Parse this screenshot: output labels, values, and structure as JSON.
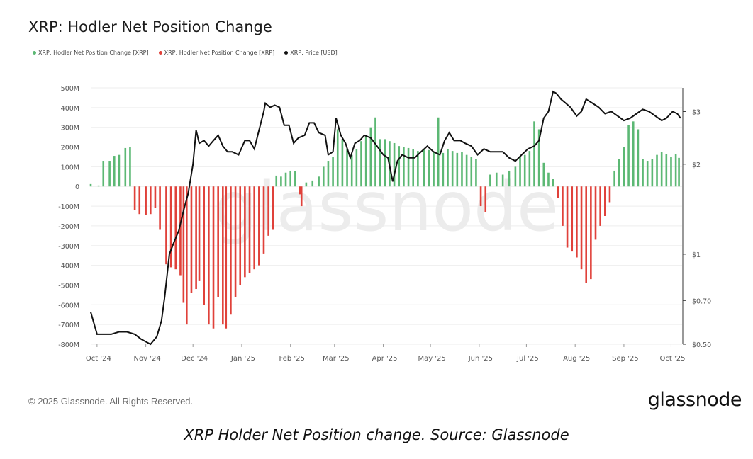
{
  "title": "XRP: Hodler Net Position Change",
  "legend": [
    {
      "label": "XRP: Hodler Net Position Change [XRP]",
      "color": "#5cb874"
    },
    {
      "label": "XRP: Hodler Net Position Change [XRP]",
      "color": "#e0413a"
    },
    {
      "label": "XRP: Price [USD]",
      "color": "#111111"
    }
  ],
  "watermark": "glassnode",
  "footer": {
    "copyright": "© 2025 Glassnode. All Rights Reserved.",
    "logo": "glassnode"
  },
  "caption": "XRP Holder Net Position change. Source: Glassnode",
  "chart_data": {
    "type": "bar",
    "title": "XRP: Hodler Net Position Change",
    "x_range": [
      "2024-09-27",
      "2025-10-08"
    ],
    "x_ticks": [
      "Oct '24",
      "Nov '24",
      "Dec '24",
      "Jan '25",
      "Feb '25",
      "Mar '25",
      "Apr '25",
      "May '25",
      "Jun '25",
      "Jul '25",
      "Aug '25",
      "Sep '25",
      "Oct '25"
    ],
    "y_left": {
      "ylim": [
        -800000000,
        500000000
      ],
      "ticks": [
        "500M",
        "400M",
        "300M",
        "200M",
        "100M",
        "0",
        "-100M",
        "-200M",
        "-300M",
        "-400M",
        "-500M",
        "-600M",
        "-700M",
        "-800M"
      ],
      "tick_values": [
        500,
        400,
        300,
        200,
        100,
        0,
        -100,
        -200,
        -300,
        -400,
        -500,
        -600,
        -700,
        -800
      ]
    },
    "y_right": {
      "scale": "log",
      "ticks": [
        "$3",
        "$2",
        "$1",
        "$0.70",
        "$0.50"
      ],
      "tick_values": [
        3,
        2,
        1,
        0.7,
        0.5
      ],
      "ylim": [
        0.5,
        3.6
      ]
    },
    "colors": {
      "positive": "#5cb874",
      "negative": "#e0413a",
      "price": "#111111"
    },
    "bar_unit": "M XRP",
    "series": [
      {
        "name": "XRP: Hodler Net Position Change [XRP]",
        "kind": "bars",
        "points": [
          [
            "2024-09-27",
            12
          ],
          [
            "2024-10-02",
            5
          ],
          [
            "2024-10-05",
            130
          ],
          [
            "2024-10-09",
            130
          ],
          [
            "2024-10-12",
            155
          ],
          [
            "2024-10-15",
            160
          ],
          [
            "2024-10-19",
            195
          ],
          [
            "2024-10-22",
            200
          ],
          [
            "2024-10-25",
            -120
          ],
          [
            "2024-10-28",
            -140
          ],
          [
            "2024-11-01",
            -145
          ],
          [
            "2024-11-04",
            -140
          ],
          [
            "2024-11-07",
            -110
          ],
          [
            "2024-11-10",
            -220
          ],
          [
            "2024-11-14",
            -395
          ],
          [
            "2024-11-17",
            -410
          ],
          [
            "2024-11-20",
            -420
          ],
          [
            "2024-11-23",
            -450
          ],
          [
            "2024-11-25",
            -590
          ],
          [
            "2024-11-27",
            -700
          ],
          [
            "2024-11-30",
            -540
          ],
          [
            "2024-12-03",
            -520
          ],
          [
            "2024-12-05",
            -480
          ],
          [
            "2024-12-08",
            -600
          ],
          [
            "2024-12-11",
            -700
          ],
          [
            "2024-12-14",
            -720
          ],
          [
            "2024-12-17",
            -560
          ],
          [
            "2024-12-20",
            -700
          ],
          [
            "2024-12-22",
            -720
          ],
          [
            "2024-12-25",
            -650
          ],
          [
            "2024-12-28",
            -560
          ],
          [
            "2024-12-31",
            -500
          ],
          [
            "2025-01-03",
            -460
          ],
          [
            "2025-01-06",
            -440
          ],
          [
            "2025-01-09",
            -420
          ],
          [
            "2025-01-12",
            -400
          ],
          [
            "2025-01-15",
            -340
          ],
          [
            "2025-01-18",
            -250
          ],
          [
            "2025-01-21",
            -220
          ],
          [
            "2025-01-23",
            55
          ],
          [
            "2025-01-26",
            50
          ],
          [
            "2025-01-29",
            70
          ],
          [
            "2025-02-01",
            80
          ],
          [
            "2025-02-04",
            78
          ],
          [
            "2025-02-07",
            -40
          ],
          [
            "2025-02-08",
            -100
          ],
          [
            "2025-02-11",
            20
          ],
          [
            "2025-02-15",
            30
          ],
          [
            "2025-02-19",
            50
          ],
          [
            "2025-02-22",
            100
          ],
          [
            "2025-02-25",
            130
          ],
          [
            "2025-02-28",
            150
          ],
          [
            "2025-03-03",
            290
          ],
          [
            "2025-03-06",
            240
          ],
          [
            "2025-03-09",
            190
          ],
          [
            "2025-03-12",
            160
          ],
          [
            "2025-03-15",
            190
          ],
          [
            "2025-03-18",
            230
          ],
          [
            "2025-03-21",
            260
          ],
          [
            "2025-03-24",
            300
          ],
          [
            "2025-03-27",
            350
          ],
          [
            "2025-03-30",
            240
          ],
          [
            "2025-04-02",
            240
          ],
          [
            "2025-04-05",
            230
          ],
          [
            "2025-04-08",
            220
          ],
          [
            "2025-04-11",
            205
          ],
          [
            "2025-04-14",
            200
          ],
          [
            "2025-04-17",
            195
          ],
          [
            "2025-04-20",
            190
          ],
          [
            "2025-04-23",
            180
          ],
          [
            "2025-04-27",
            190
          ],
          [
            "2025-04-30",
            185
          ],
          [
            "2025-05-03",
            175
          ],
          [
            "2025-05-06",
            350
          ],
          [
            "2025-05-09",
            170
          ],
          [
            "2025-05-12",
            190
          ],
          [
            "2025-05-15",
            180
          ],
          [
            "2025-05-18",
            170
          ],
          [
            "2025-05-21",
            175
          ],
          [
            "2025-05-24",
            160
          ],
          [
            "2025-05-27",
            150
          ],
          [
            "2025-05-30",
            140
          ],
          [
            "2025-06-02",
            -100
          ],
          [
            "2025-06-05",
            -130
          ],
          [
            "2025-06-08",
            60
          ],
          [
            "2025-06-12",
            70
          ],
          [
            "2025-06-16",
            60
          ],
          [
            "2025-06-20",
            80
          ],
          [
            "2025-06-24",
            100
          ],
          [
            "2025-06-27",
            150
          ],
          [
            "2025-06-30",
            160
          ],
          [
            "2025-07-03",
            180
          ],
          [
            "2025-07-06",
            330
          ],
          [
            "2025-07-09",
            290
          ],
          [
            "2025-07-12",
            120
          ],
          [
            "2025-07-15",
            70
          ],
          [
            "2025-07-18",
            40
          ],
          [
            "2025-07-21",
            -60
          ],
          [
            "2025-07-24",
            -200
          ],
          [
            "2025-07-27",
            -310
          ],
          [
            "2025-07-30",
            -330
          ],
          [
            "2025-08-02",
            -360
          ],
          [
            "2025-08-05",
            -420
          ],
          [
            "2025-08-08",
            -490
          ],
          [
            "2025-08-11",
            -470
          ],
          [
            "2025-08-14",
            -270
          ],
          [
            "2025-08-17",
            -200
          ],
          [
            "2025-08-20",
            -150
          ],
          [
            "2025-08-23",
            -80
          ],
          [
            "2025-08-26",
            80
          ],
          [
            "2025-08-29",
            140
          ],
          [
            "2025-09-01",
            200
          ],
          [
            "2025-09-04",
            310
          ],
          [
            "2025-09-07",
            330
          ],
          [
            "2025-09-10",
            290
          ],
          [
            "2025-09-13",
            140
          ],
          [
            "2025-09-16",
            130
          ],
          [
            "2025-09-19",
            140
          ],
          [
            "2025-09-22",
            160
          ],
          [
            "2025-09-25",
            175
          ],
          [
            "2025-09-28",
            165
          ],
          [
            "2025-10-01",
            150
          ],
          [
            "2025-10-04",
            165
          ],
          [
            "2025-10-06",
            145
          ]
        ]
      },
      {
        "name": "XRP: Price [USD]",
        "kind": "line",
        "points": [
          [
            "2024-09-27",
            0.64
          ],
          [
            "2024-10-01",
            0.54
          ],
          [
            "2024-10-05",
            0.54
          ],
          [
            "2024-10-10",
            0.54
          ],
          [
            "2024-10-15",
            0.55
          ],
          [
            "2024-10-20",
            0.55
          ],
          [
            "2024-10-25",
            0.54
          ],
          [
            "2024-10-29",
            0.52
          ],
          [
            "2024-11-01",
            0.51
          ],
          [
            "2024-11-04",
            0.5
          ],
          [
            "2024-11-08",
            0.53
          ],
          [
            "2024-11-11",
            0.6
          ],
          [
            "2024-11-13",
            0.72
          ],
          [
            "2024-11-16",
            1.0
          ],
          [
            "2024-11-19",
            1.1
          ],
          [
            "2024-11-22",
            1.2
          ],
          [
            "2024-11-25",
            1.4
          ],
          [
            "2024-11-28",
            1.6
          ],
          [
            "2024-12-01",
            2.0
          ],
          [
            "2024-12-03",
            2.6
          ],
          [
            "2024-12-05",
            2.35
          ],
          [
            "2024-12-08",
            2.4
          ],
          [
            "2024-12-11",
            2.3
          ],
          [
            "2024-12-14",
            2.4
          ],
          [
            "2024-12-17",
            2.5
          ],
          [
            "2024-12-20",
            2.3
          ],
          [
            "2024-12-23",
            2.2
          ],
          [
            "2024-12-26",
            2.2
          ],
          [
            "2024-12-30",
            2.15
          ],
          [
            "2025-01-03",
            2.4
          ],
          [
            "2025-01-06",
            2.4
          ],
          [
            "2025-01-09",
            2.25
          ],
          [
            "2025-01-12",
            2.6
          ],
          [
            "2025-01-15",
            3.0
          ],
          [
            "2025-01-16",
            3.2
          ],
          [
            "2025-01-19",
            3.1
          ],
          [
            "2025-01-22",
            3.15
          ],
          [
            "2025-01-25",
            3.1
          ],
          [
            "2025-01-28",
            2.7
          ],
          [
            "2025-01-31",
            2.7
          ],
          [
            "2025-02-03",
            2.35
          ],
          [
            "2025-02-06",
            2.45
          ],
          [
            "2025-02-10",
            2.5
          ],
          [
            "2025-02-13",
            2.75
          ],
          [
            "2025-02-16",
            2.75
          ],
          [
            "2025-02-19",
            2.55
          ],
          [
            "2025-02-23",
            2.5
          ],
          [
            "2025-02-25",
            2.15
          ],
          [
            "2025-02-28",
            2.2
          ],
          [
            "2025-03-02",
            2.85
          ],
          [
            "2025-03-05",
            2.5
          ],
          [
            "2025-03-08",
            2.35
          ],
          [
            "2025-03-11",
            2.1
          ],
          [
            "2025-03-14",
            2.35
          ],
          [
            "2025-03-17",
            2.4
          ],
          [
            "2025-03-20",
            2.5
          ],
          [
            "2025-03-24",
            2.45
          ],
          [
            "2025-03-28",
            2.3
          ],
          [
            "2025-04-01",
            2.15
          ],
          [
            "2025-04-04",
            2.1
          ],
          [
            "2025-04-07",
            1.75
          ],
          [
            "2025-04-10",
            2.05
          ],
          [
            "2025-04-13",
            2.15
          ],
          [
            "2025-04-17",
            2.1
          ],
          [
            "2025-04-21",
            2.1
          ],
          [
            "2025-04-25",
            2.2
          ],
          [
            "2025-04-29",
            2.3
          ],
          [
            "2025-05-03",
            2.2
          ],
          [
            "2025-05-07",
            2.15
          ],
          [
            "2025-05-10",
            2.4
          ],
          [
            "2025-05-13",
            2.55
          ],
          [
            "2025-05-16",
            2.4
          ],
          [
            "2025-05-20",
            2.4
          ],
          [
            "2025-05-23",
            2.35
          ],
          [
            "2025-05-27",
            2.3
          ],
          [
            "2025-05-31",
            2.15
          ],
          [
            "2025-06-04",
            2.25
          ],
          [
            "2025-06-08",
            2.2
          ],
          [
            "2025-06-12",
            2.2
          ],
          [
            "2025-06-16",
            2.2
          ],
          [
            "2025-06-20",
            2.1
          ],
          [
            "2025-06-24",
            2.05
          ],
          [
            "2025-06-28",
            2.15
          ],
          [
            "2025-07-02",
            2.25
          ],
          [
            "2025-07-06",
            2.3
          ],
          [
            "2025-07-09",
            2.4
          ],
          [
            "2025-07-12",
            2.85
          ],
          [
            "2025-07-15",
            3.0
          ],
          [
            "2025-07-18",
            3.5
          ],
          [
            "2025-07-20",
            3.45
          ],
          [
            "2025-07-23",
            3.3
          ],
          [
            "2025-07-26",
            3.2
          ],
          [
            "2025-07-29",
            3.1
          ],
          [
            "2025-08-02",
            2.9
          ],
          [
            "2025-08-05",
            3.0
          ],
          [
            "2025-08-08",
            3.3
          ],
          [
            "2025-08-12",
            3.2
          ],
          [
            "2025-08-16",
            3.1
          ],
          [
            "2025-08-20",
            2.95
          ],
          [
            "2025-08-24",
            3.0
          ],
          [
            "2025-08-28",
            2.9
          ],
          [
            "2025-09-01",
            2.8
          ],
          [
            "2025-09-05",
            2.85
          ],
          [
            "2025-09-09",
            2.95
          ],
          [
            "2025-09-13",
            3.05
          ],
          [
            "2025-09-17",
            3.0
          ],
          [
            "2025-09-21",
            2.9
          ],
          [
            "2025-09-25",
            2.8
          ],
          [
            "2025-09-28",
            2.85
          ],
          [
            "2025-10-02",
            3.0
          ],
          [
            "2025-10-05",
            2.95
          ],
          [
            "2025-10-07",
            2.85
          ]
        ]
      }
    ]
  }
}
